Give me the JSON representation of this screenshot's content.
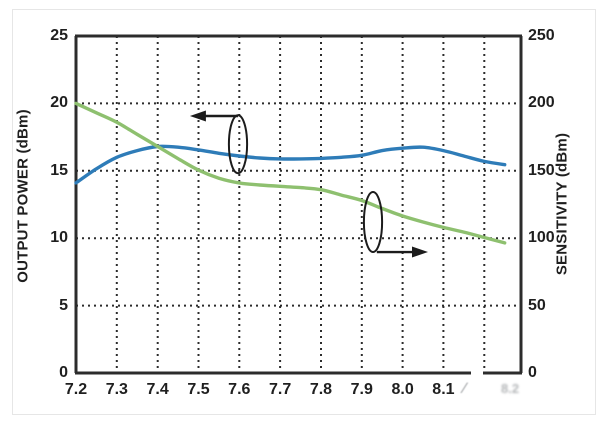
{
  "chart_data": {
    "type": "line",
    "title": "",
    "x_axis": {
      "label": "",
      "range": [
        7.2,
        8.29
      ],
      "tick_labels": [
        "7.2",
        "7.3",
        "7.4",
        "7.5",
        "7.6",
        "7.7",
        "7.8",
        "7.9",
        "8.0",
        "8.1"
      ],
      "gridlines": [
        7.3,
        7.4,
        7.5,
        7.6,
        7.7,
        7.8,
        7.9,
        8.0,
        8.1,
        8.2
      ]
    },
    "y_left": {
      "label": "OUTPUT POWER (dBm)",
      "range": [
        0,
        25
      ],
      "tick_labels": [
        "25",
        "20",
        "15",
        "10",
        "5",
        "0"
      ],
      "gridlines": [
        5,
        10,
        15,
        20
      ]
    },
    "y_right": {
      "label": "SENSITIVITY (dBm)",
      "range": [
        0,
        250
      ],
      "tick_labels": [
        "250",
        "200",
        "150",
        "100",
        "50",
        "0"
      ]
    },
    "grid_style": "dotted",
    "legend": "none",
    "sample_x": [
      7.2,
      7.25,
      7.3,
      7.35,
      7.4,
      7.45,
      7.5,
      7.55,
      7.6,
      7.65,
      7.7,
      7.75,
      7.8,
      7.85,
      7.9,
      7.95,
      8.0,
      8.05,
      8.1,
      8.15,
      8.2,
      8.25
    ],
    "series": [
      {
        "name": "OUTPUT POWER",
        "axis": "left",
        "color": "#2e7cb8",
        "values": [
          14.1,
          15.15,
          16.0,
          16.5,
          16.8,
          16.75,
          16.55,
          16.3,
          16.1,
          15.95,
          15.88,
          15.88,
          15.92,
          16.0,
          16.15,
          16.5,
          16.68,
          16.75,
          16.5,
          16.1,
          15.7,
          15.45
        ]
      },
      {
        "name": "SENSITIVITY",
        "axis": "right",
        "color": "#8ec06f",
        "values": [
          200,
          193,
          186,
          177,
          168,
          159,
          150.5,
          144.5,
          141,
          139.5,
          138.5,
          137.5,
          136,
          132,
          128,
          122,
          116.5,
          112,
          108,
          104.5,
          100.5,
          96.5
        ]
      }
    ],
    "annotations": [
      {
        "name": "left-axis-indicator",
        "meaning": "blue curve reads on left axis",
        "ellipse": {
          "fx": 0.364,
          "fy": 0.321,
          "frx": 0.0205,
          "fry": 0.086
        },
        "arrow": {
          "fy": 0.2374,
          "from_fx": 0.364,
          "to_fx": 0.256,
          "dir": "left"
        }
      },
      {
        "name": "right-axis-indicator",
        "meaning": "green curve reads on right axis",
        "ellipse": {
          "fx": 0.6675,
          "fy": 0.552,
          "frx": 0.0205,
          "fry": 0.089
        },
        "arrow": {
          "fy": 0.641,
          "from_fx": 0.676,
          "to_fx": 0.791,
          "dir": "right"
        }
      }
    ]
  },
  "colors": {
    "axis": "#2c2c2c",
    "grid": "#2c2c2c",
    "text": "#1f1f1f",
    "annotation": "#1c1c1c"
  },
  "watermark": {
    "remnant_slash": "∕",
    "remnant_blob": "8.2"
  }
}
